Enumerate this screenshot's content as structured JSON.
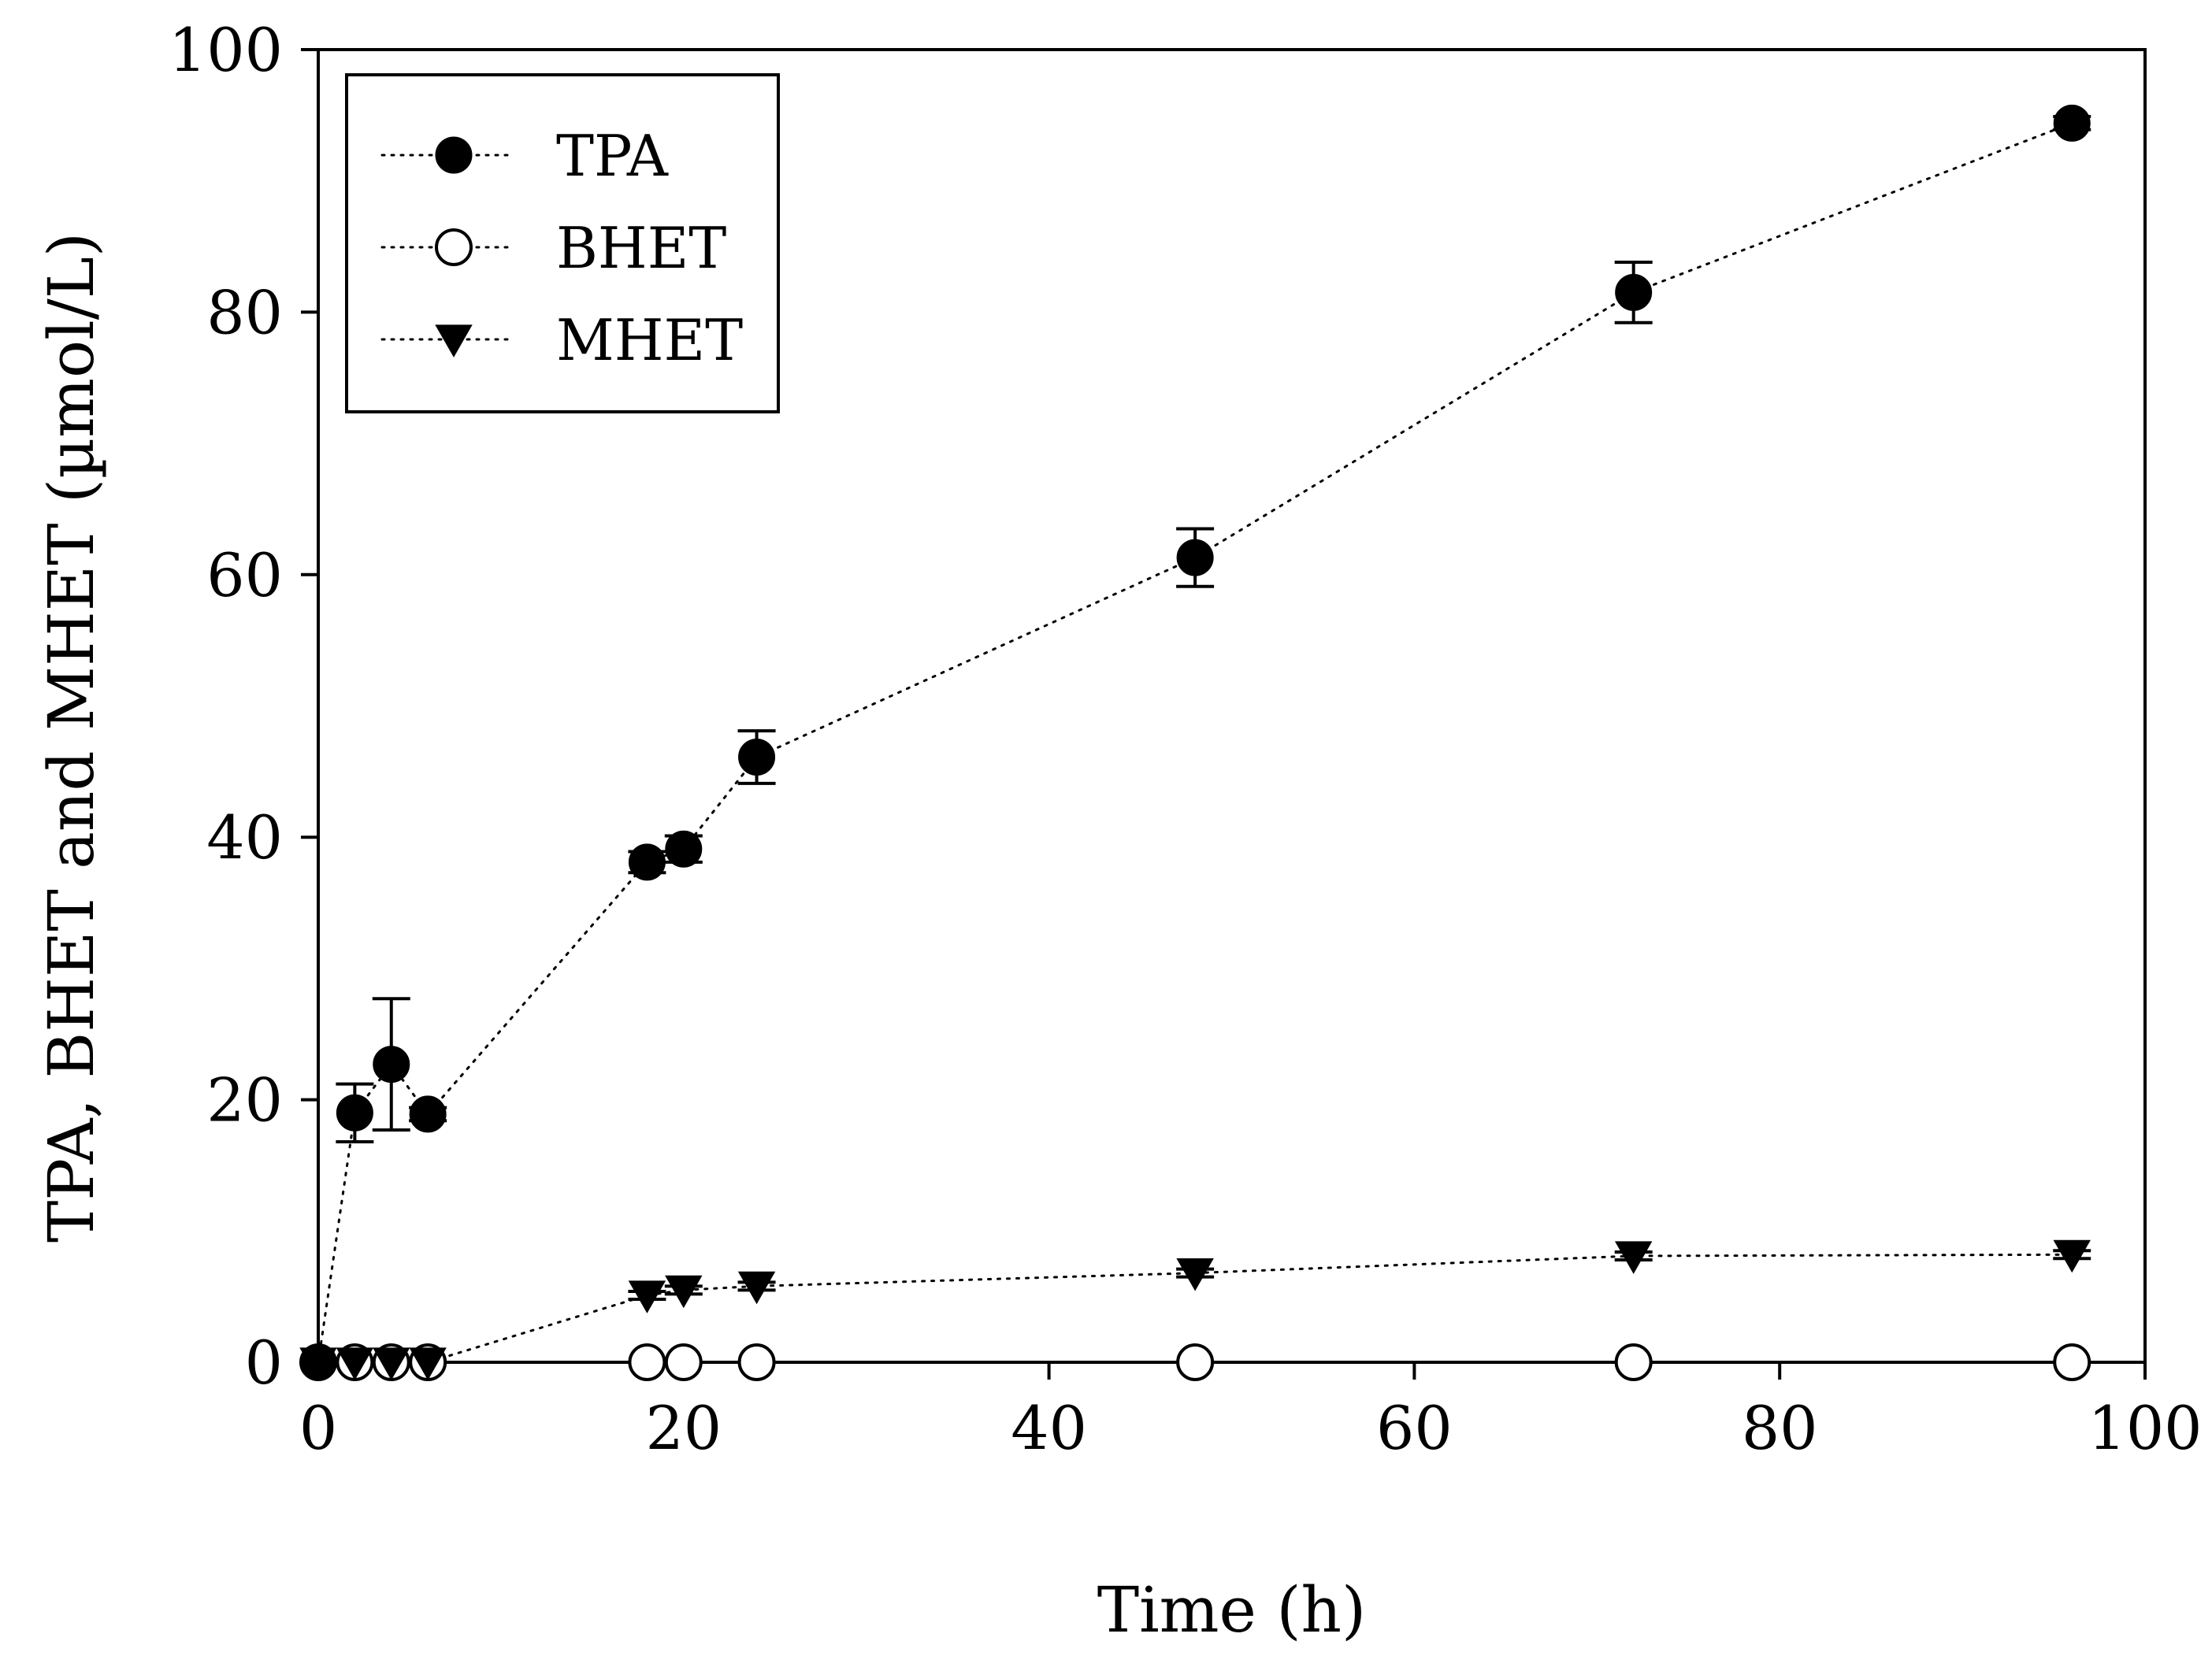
{
  "chart_data": {
    "type": "line",
    "title": "",
    "xlabel": "Time (h)",
    "ylabel": "TPA, BHET and MHET (µmol/L)",
    "xlim": [
      0,
      100
    ],
    "ylim": [
      0,
      100
    ],
    "xticks": [
      0,
      20,
      40,
      60,
      80,
      100
    ],
    "yticks": [
      0,
      20,
      40,
      60,
      80,
      100
    ],
    "xtick_labels": [
      "0",
      "20",
      "40",
      "60",
      "80",
      "100"
    ],
    "ytick_labels": [
      "0",
      "20",
      "40",
      "60",
      "80",
      "100"
    ],
    "grid": false,
    "legend_position": "top-left",
    "series": [
      {
        "name": "TPA",
        "marker": "filled-circle",
        "line_style": "dotted",
        "x": [
          0,
          2,
          4,
          6,
          18,
          20,
          24,
          48,
          72,
          96
        ],
        "y": [
          0,
          19,
          22.7,
          18.9,
          38.1,
          39.1,
          46.1,
          61.3,
          81.5,
          94.4
        ],
        "error": [
          0,
          2.2,
          5,
          0.5,
          0.8,
          1,
          2,
          2.2,
          2.3,
          0.5
        ]
      },
      {
        "name": "BHET",
        "marker": "open-circle",
        "line_style": "dotted",
        "x": [
          0,
          2,
          4,
          6,
          18,
          20,
          24,
          48,
          72,
          96
        ],
        "y": [
          0,
          0,
          0,
          0,
          0,
          0,
          0,
          0,
          0,
          0
        ],
        "error": [
          0,
          0,
          0,
          0,
          0,
          0,
          0,
          0,
          0,
          0
        ]
      },
      {
        "name": "MHET",
        "marker": "filled-triangle-down",
        "line_style": "dotted",
        "x": [
          0,
          2,
          4,
          6,
          18,
          20,
          24,
          48,
          72,
          96
        ],
        "y": [
          0,
          0,
          0,
          0,
          5.1,
          5.5,
          5.8,
          6.8,
          8.1,
          8.2
        ],
        "error": [
          0,
          0,
          0,
          0,
          0.3,
          0.3,
          0.3,
          0.3,
          0.3,
          0.3
        ]
      }
    ]
  },
  "colors": {
    "ink": "#000000",
    "background": "#ffffff"
  }
}
